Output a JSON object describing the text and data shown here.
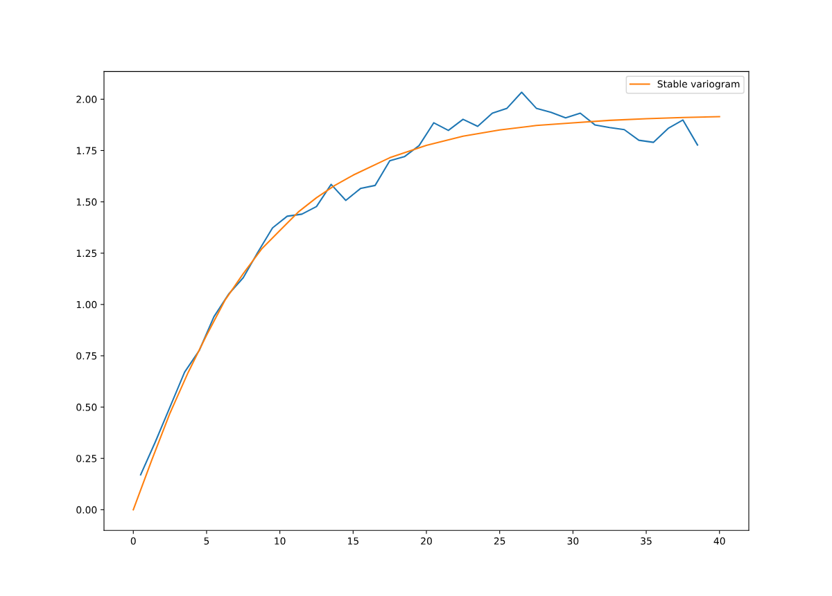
{
  "chart_data": {
    "type": "line",
    "series": [
      {
        "color": "#1f77b4",
        "x": [
          0.5,
          1.5,
          2.5,
          3.5,
          4.5,
          5.5,
          6.5,
          7.5,
          8.5,
          9.5,
          10.5,
          11.5,
          12.5,
          13.5,
          14.5,
          15.5,
          16.5,
          17.5,
          18.5,
          19.5,
          20.5,
          21.5,
          22.5,
          23.5,
          24.5,
          25.5,
          26.5,
          27.5,
          28.5,
          29.5,
          30.5,
          31.5,
          32.5,
          33.5,
          34.5,
          35.5,
          36.5,
          37.5,
          38.5
        ],
        "values": [
          0.17,
          0.33,
          0.5,
          0.67,
          0.776,
          0.94,
          1.05,
          1.13,
          1.255,
          1.373,
          1.43,
          1.44,
          1.477,
          1.585,
          1.507,
          1.565,
          1.58,
          1.7,
          1.72,
          1.774,
          1.885,
          1.848,
          1.902,
          1.868,
          1.932,
          1.956,
          2.034,
          1.956,
          1.936,
          1.909,
          1.932,
          1.875,
          1.862,
          1.852,
          1.8,
          1.79,
          1.858,
          1.899,
          1.777
        ]
      },
      {
        "name": "Stable variogram",
        "color": "#ff7f0e",
        "x": [
          0,
          1.25,
          2.5,
          3.75,
          5,
          6.25,
          7.5,
          8.75,
          10,
          11.25,
          12.5,
          13.75,
          15,
          17.5,
          20,
          22.5,
          25,
          27.5,
          30,
          32.5,
          35,
          37.5,
          40
        ],
        "values": [
          0,
          0.24,
          0.47,
          0.67,
          0.85,
          1.02,
          1.15,
          1.27,
          1.36,
          1.45,
          1.52,
          1.58,
          1.63,
          1.715,
          1.775,
          1.82,
          1.85,
          1.872,
          1.885,
          1.897,
          1.905,
          1.911,
          1.915
        ]
      }
    ],
    "xlim": [
      -2,
      42
    ],
    "ylim": [
      -0.101,
      2.135
    ],
    "xticks": [
      0,
      5,
      10,
      15,
      20,
      25,
      30,
      35,
      40
    ],
    "yticks": [
      {
        "value": 0,
        "label": "0.00"
      },
      {
        "value": 0.25,
        "label": "0.25"
      },
      {
        "value": 0.5,
        "label": "0.50"
      },
      {
        "value": 0.75,
        "label": "0.75"
      },
      {
        "value": 1,
        "label": "1.00"
      },
      {
        "value": 1.25,
        "label": "1.25"
      },
      {
        "value": 1.5,
        "label": "1.50"
      },
      {
        "value": 1.75,
        "label": "1.75"
      },
      {
        "value": 2,
        "label": "2.00"
      }
    ],
    "legend": "top right",
    "grid": false
  }
}
